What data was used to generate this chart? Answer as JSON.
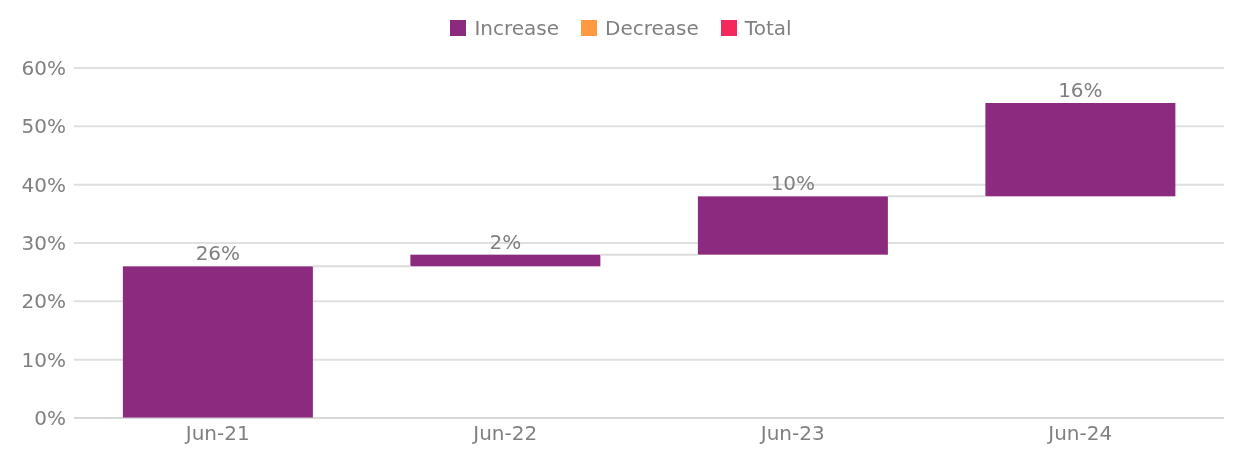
{
  "chart_data": {
    "type": "bar",
    "categories": [
      "Jun-21",
      "Jun-22",
      "Jun-23",
      "Jun-24"
    ],
    "series": [
      {
        "name": "Increase",
        "color": "#8b2a7e",
        "values": [
          26,
          2,
          10,
          16
        ],
        "base": [
          0,
          26,
          28,
          38
        ],
        "value_labels": [
          "26%",
          "2%",
          "10%",
          "16%"
        ]
      },
      {
        "name": "Decrease",
        "color": "#ff9a40",
        "values": [
          null,
          null,
          null,
          null
        ]
      },
      {
        "name": "Total",
        "color": "#f5285e",
        "values": [
          null,
          null,
          null,
          null
        ]
      }
    ],
    "ylim": [
      0,
      60
    ],
    "yticks": [
      {
        "value": 0,
        "label": "0%"
      },
      {
        "value": 10,
        "label": "10%"
      },
      {
        "value": 20,
        "label": "20%"
      },
      {
        "value": 30,
        "label": "30%"
      },
      {
        "value": 40,
        "label": "40%"
      },
      {
        "value": 50,
        "label": "50%"
      },
      {
        "value": 60,
        "label": "60%"
      }
    ],
    "grid": "y",
    "legend": "top"
  }
}
